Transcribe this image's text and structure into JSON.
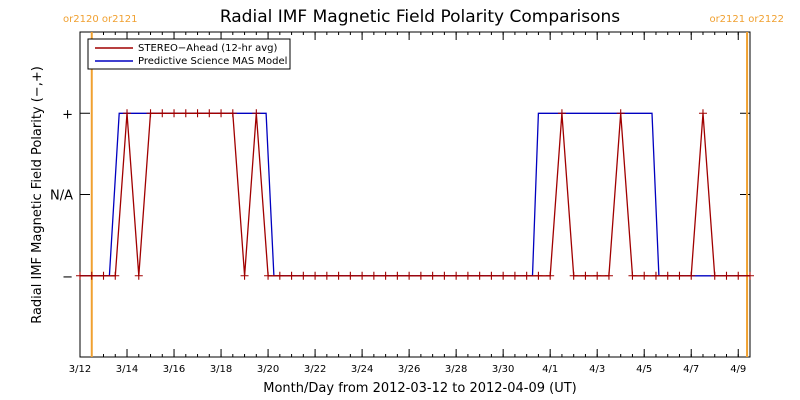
{
  "chart_data": {
    "type": "line",
    "title": "Radial IMF Magnetic Field Polarity Comparisons",
    "xlabel": "Month/Day from 2012-03-12 to 2012-04-09 (UT)",
    "ylabel": "Radial IMF Magnetic Field Polarity (−,+)",
    "xlim": [
      "2012-03-12T00:00",
      "2012-04-09T12:00"
    ],
    "x_ticks": [
      {
        "date": "2012-03-12",
        "label": "3/12"
      },
      {
        "date": "2012-03-14",
        "label": "3/14"
      },
      {
        "date": "2012-03-16",
        "label": "3/16"
      },
      {
        "date": "2012-03-18",
        "label": "3/18"
      },
      {
        "date": "2012-03-20",
        "label": "3/20"
      },
      {
        "date": "2012-03-22",
        "label": "3/22"
      },
      {
        "date": "2012-03-24",
        "label": "3/24"
      },
      {
        "date": "2012-03-26",
        "label": "3/26"
      },
      {
        "date": "2012-03-28",
        "label": "3/28"
      },
      {
        "date": "2012-03-30",
        "label": "3/30"
      },
      {
        "date": "2012-04-01",
        "label": "4/1"
      },
      {
        "date": "2012-04-03",
        "label": "4/3"
      },
      {
        "date": "2012-04-05",
        "label": "4/5"
      },
      {
        "date": "2012-04-07",
        "label": "4/7"
      },
      {
        "date": "2012-04-09",
        "label": "4/9"
      }
    ],
    "y_categories": [
      {
        "value": -1,
        "label": "−"
      },
      {
        "value": 0,
        "label": "N/A"
      },
      {
        "value": 1,
        "label": "+"
      }
    ],
    "ylim": [
      -2,
      2
    ],
    "legend_position": "top-left",
    "carrington_markers": [
      {
        "date": "2012-03-12T12:00",
        "label": "or2120 or2121"
      },
      {
        "date": "2012-04-09T09:00",
        "label": "or2121 or2122"
      }
    ],
    "series": [
      {
        "name": "STEREO−Ahead (12-hr avg)",
        "color": "#a00000",
        "marker": "plus",
        "points": [
          [
            "2012-03-12T00:00",
            -1
          ],
          [
            "2012-03-12T12:00",
            -1
          ],
          [
            "2012-03-13T00:00",
            -1
          ],
          [
            "2012-03-13T12:00",
            -1
          ],
          [
            "2012-03-14T00:00",
            1
          ],
          [
            "2012-03-14T12:00",
            -1
          ],
          [
            "2012-03-15T00:00",
            1
          ],
          [
            "2012-03-15T12:00",
            1
          ],
          [
            "2012-03-16T00:00",
            1
          ],
          [
            "2012-03-16T12:00",
            1
          ],
          [
            "2012-03-17T00:00",
            1
          ],
          [
            "2012-03-17T12:00",
            1
          ],
          [
            "2012-03-18T00:00",
            1
          ],
          [
            "2012-03-18T12:00",
            1
          ],
          [
            "2012-03-19T00:00",
            -1
          ],
          [
            "2012-03-19T12:00",
            1
          ],
          [
            "2012-03-20T00:00",
            -1
          ],
          [
            "2012-03-20T12:00",
            -1
          ],
          [
            "2012-03-21T00:00",
            -1
          ],
          [
            "2012-03-21T12:00",
            -1
          ],
          [
            "2012-03-22T00:00",
            -1
          ],
          [
            "2012-03-22T12:00",
            -1
          ],
          [
            "2012-03-23T00:00",
            -1
          ],
          [
            "2012-03-23T12:00",
            -1
          ],
          [
            "2012-03-24T00:00",
            -1
          ],
          [
            "2012-03-24T12:00",
            -1
          ],
          [
            "2012-03-25T00:00",
            -1
          ],
          [
            "2012-03-25T12:00",
            -1
          ],
          [
            "2012-03-26T00:00",
            -1
          ],
          [
            "2012-03-26T12:00",
            -1
          ],
          [
            "2012-03-27T00:00",
            -1
          ],
          [
            "2012-03-27T12:00",
            -1
          ],
          [
            "2012-03-28T00:00",
            -1
          ],
          [
            "2012-03-28T12:00",
            -1
          ],
          [
            "2012-03-29T00:00",
            -1
          ],
          [
            "2012-03-29T12:00",
            -1
          ],
          [
            "2012-03-30T00:00",
            -1
          ],
          [
            "2012-03-30T12:00",
            -1
          ],
          [
            "2012-03-31T00:00",
            -1
          ],
          [
            "2012-03-31T12:00",
            -1
          ],
          [
            "2012-04-01T00:00",
            -1
          ],
          [
            "2012-04-01T12:00",
            1
          ],
          [
            "2012-04-02T00:00",
            -1
          ],
          [
            "2012-04-02T12:00",
            -1
          ],
          [
            "2012-04-03T00:00",
            -1
          ],
          [
            "2012-04-03T12:00",
            -1
          ],
          [
            "2012-04-04T00:00",
            1
          ],
          [
            "2012-04-04T12:00",
            -1
          ],
          [
            "2012-04-05T00:00",
            -1
          ],
          [
            "2012-04-05T12:00",
            -1
          ],
          [
            "2012-04-06T00:00",
            -1
          ],
          [
            "2012-04-06T12:00",
            -1
          ],
          [
            "2012-04-07T00:00",
            -1
          ],
          [
            "2012-04-07T12:00",
            1
          ],
          [
            "2012-04-08T00:00",
            -1
          ],
          [
            "2012-04-08T12:00",
            -1
          ],
          [
            "2012-04-09T00:00",
            -1
          ],
          [
            "2012-04-09T12:00",
            -1
          ]
        ]
      },
      {
        "name": "Predictive Science MAS Model",
        "color": "#0000c0",
        "marker": "none",
        "points": [
          [
            "2012-03-12T00:00",
            -1
          ],
          [
            "2012-03-13T06:00",
            -1
          ],
          [
            "2012-03-13T16:00",
            1
          ],
          [
            "2012-03-19T22:00",
            1
          ],
          [
            "2012-03-20T06:00",
            -1
          ],
          [
            "2012-03-31T06:00",
            -1
          ],
          [
            "2012-03-31T12:00",
            1
          ],
          [
            "2012-04-05T08:00",
            1
          ],
          [
            "2012-04-05T15:00",
            -1
          ],
          [
            "2012-04-09T12:00",
            -1
          ]
        ]
      }
    ]
  }
}
